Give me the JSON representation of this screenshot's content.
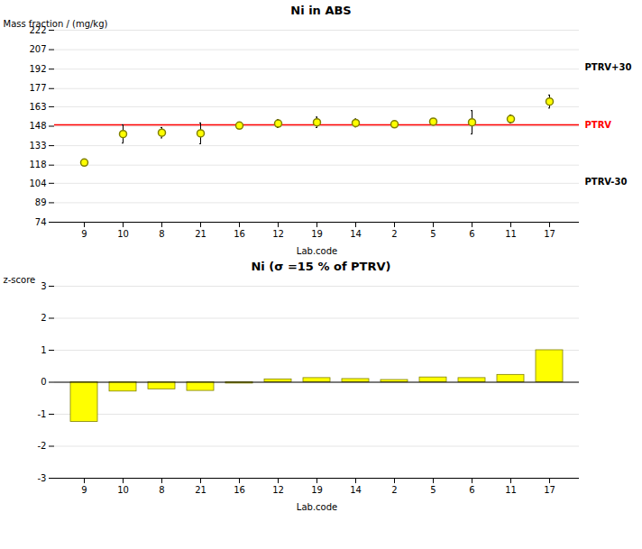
{
  "chart_data": [
    {
      "type": "scatter",
      "title": "Ni in ABS",
      "categories": [
        "9",
        "10",
        "8",
        "21",
        "16",
        "12",
        "19",
        "14",
        "2",
        "5",
        "6",
        "11",
        "17"
      ],
      "values": [
        120.0,
        142.0,
        143.0,
        142.5,
        148.5,
        150.0,
        151.0,
        150.5,
        149.5,
        151.5,
        151.0,
        153.5,
        167.0
      ],
      "error_low": [
        0,
        7,
        4,
        8,
        0,
        3,
        4,
        3,
        2,
        2,
        9,
        3,
        5
      ],
      "error_high": [
        0,
        7,
        4,
        8,
        0,
        3,
        4,
        3,
        2,
        2,
        9,
        3,
        5
      ],
      "color": "#FFFF00",
      "marker": "circle",
      "xlabel": "Lab.code",
      "ylabel": "Mass fraction / (mg/kg)",
      "ylim": [
        74,
        222
      ],
      "yticks": [
        74,
        89,
        104,
        118,
        133,
        148,
        163,
        177,
        192,
        207,
        222
      ],
      "grid": true,
      "annotations": [
        {
          "text": "PTRV+30",
          "y": 193.0,
          "color": "#000000"
        },
        {
          "text": "PTRV",
          "y": 149.0,
          "color": "#FF0000",
          "line_style": "solid"
        },
        {
          "text": "PTRV-30",
          "y": 105.0,
          "color": "#000000"
        }
      ]
    },
    {
      "type": "bar",
      "title": "Ni (σ =15 % of PTRV)",
      "categories": [
        "9",
        "10",
        "8",
        "21",
        "16",
        "12",
        "19",
        "14",
        "2",
        "5",
        "6",
        "11",
        "17"
      ],
      "values": [
        -1.24,
        -0.29,
        -0.22,
        -0.27,
        -0.04,
        0.09,
        0.13,
        0.1,
        0.07,
        0.15,
        0.13,
        0.23,
        1.0
      ],
      "color": "#FFFF00",
      "xlabel": "Lab.code",
      "ylabel": "z-score",
      "ylim": [
        -3,
        3
      ],
      "yticks": [
        -3,
        -2,
        -1,
        0,
        1,
        2,
        3
      ],
      "grid": true
    }
  ]
}
